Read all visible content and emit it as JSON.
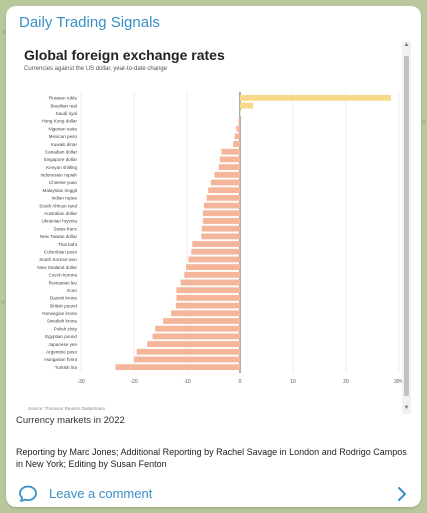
{
  "channel": {
    "title": "Daily Trading Signals"
  },
  "post": {
    "caption": "Currency markets in 2022",
    "body": "Reporting by Marc Jones; Additional Reporting by Rachel Savage in London and Rodrigo Campos in New York; Editing by Susan Fenton",
    "comment_label": "Leave a comment"
  },
  "colors": {
    "accent": "#3a8fc7",
    "positive_bar": "#f7d98a",
    "negative_bar": "#f4b59a",
    "background": "#b9c89a"
  },
  "icons": {
    "comment": "comment-bubble-icon",
    "chevron": "chevron-right-icon"
  },
  "chart_data": {
    "type": "bar",
    "orientation": "horizontal",
    "title": "Global foreign exchange rates",
    "subtitle": "Currencies against the US dollar, year-to-date change",
    "source": "Source: Thomson Reuters Datastream",
    "xlabel": "",
    "ylabel": "",
    "xlim": [
      -30,
      30
    ],
    "x_ticks": [
      "-30",
      "-20",
      "-10",
      "0",
      "10",
      "20",
      "30%"
    ],
    "grid": true,
    "categories": [
      "Russian ruble",
      "Brazilian real",
      "Saudi riyal",
      "Hong Kong dollar",
      "Nigerian naira",
      "Mexican peso",
      "Kuwaiti dinar",
      "Canadian dollar",
      "Singapore dollar",
      "Kenyan shilling",
      "Indonesian rupiah",
      "Chinese yuan",
      "Malaysian ringgit",
      "Indian rupee",
      "South African rand",
      "Australian dollar",
      "Ukrainian hryvnia",
      "Swiss franc",
      "New Taiwan dollar",
      "Thai baht",
      "Colombian peso",
      "South Korean won",
      "New Zealand dollar",
      "Czech koruna",
      "Romanian leu",
      "Euro",
      "Danish krone",
      "British pound",
      "Norwegian krone",
      "Swedish krona",
      "Polish zloty",
      "Egyptian pound",
      "Japanese yen",
      "Argentine peso",
      "Hungarian forint",
      "Turkish lira"
    ],
    "values": [
      28.5,
      2.5,
      0.1,
      -0.3,
      -0.7,
      -1.0,
      -1.3,
      -3.5,
      -3.8,
      -4.0,
      -4.8,
      -5.5,
      -6.0,
      -6.3,
      -6.8,
      -7.0,
      -7.0,
      -7.2,
      -7.3,
      -9.0,
      -9.2,
      -9.7,
      -10.2,
      -10.5,
      -11.2,
      -12.0,
      -12.0,
      -12.1,
      -13.0,
      -14.5,
      -16.0,
      -16.5,
      -17.5,
      -19.5,
      -20.0,
      -23.5
    ]
  }
}
